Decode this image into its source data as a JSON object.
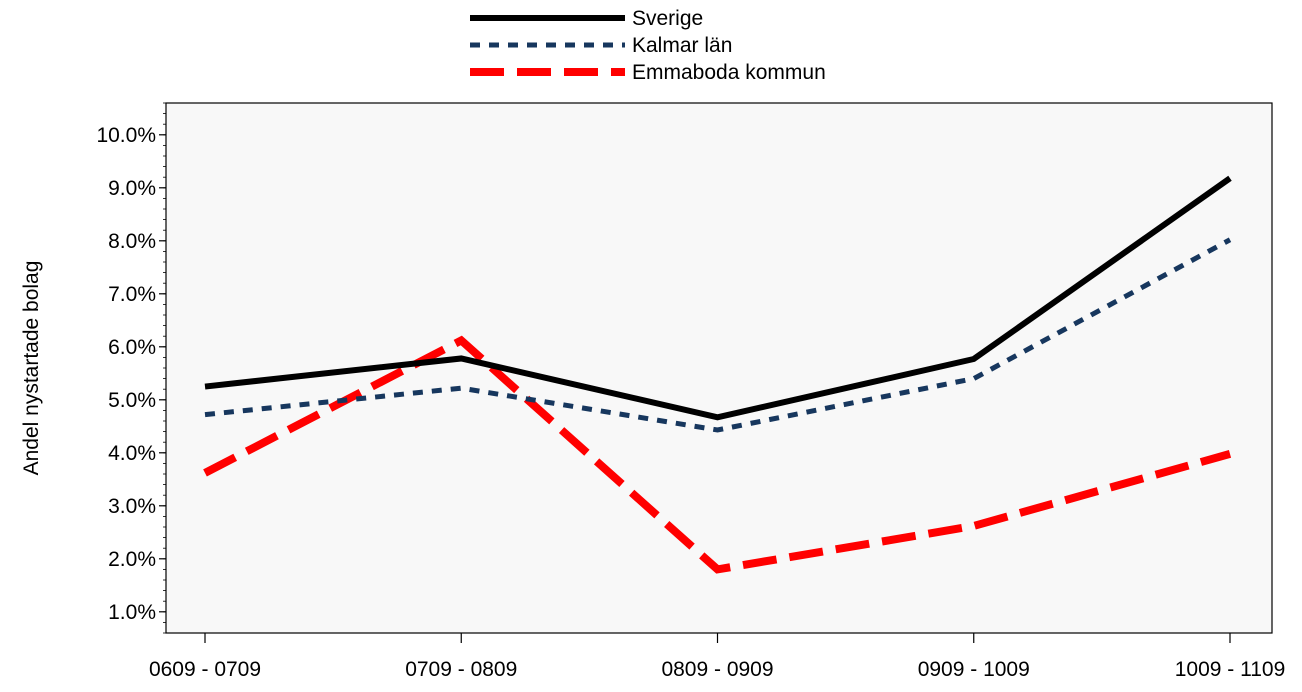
{
  "chart_data": {
    "type": "line",
    "title": "",
    "xlabel": "",
    "ylabel": "Andel nystartade bolag",
    "categories": [
      "0609 - 0709",
      "0709 - 0809",
      "0809 - 0909",
      "0909 - 1009",
      "1009 - 1109"
    ],
    "ylim": [
      0.6,
      10.6
    ],
    "yticks": [
      1.0,
      2.0,
      3.0,
      4.0,
      5.0,
      6.0,
      7.0,
      8.0,
      9.0,
      10.0
    ],
    "ytick_labels": [
      "1.0%",
      "2.0%",
      "3.0%",
      "4.0%",
      "5.0%",
      "6.0%",
      "7.0%",
      "8.0%",
      "9.0%",
      "10.0%"
    ],
    "grid": false,
    "plot_background": "#f8f8f8",
    "legend_position": "top-center",
    "series": [
      {
        "name": "Sverige",
        "values": [
          5.25,
          5.78,
          4.67,
          5.77,
          9.18
        ],
        "color": "#000000",
        "style": "solid"
      },
      {
        "name": "Kalmar län",
        "values": [
          4.72,
          5.22,
          4.43,
          5.4,
          8.02
        ],
        "color": "#17375e",
        "style": "dotted"
      },
      {
        "name": "Emmaboda kommun",
        "values": [
          3.62,
          6.12,
          1.8,
          2.62,
          3.98
        ],
        "color": "#ff0000",
        "style": "dashed"
      }
    ]
  }
}
